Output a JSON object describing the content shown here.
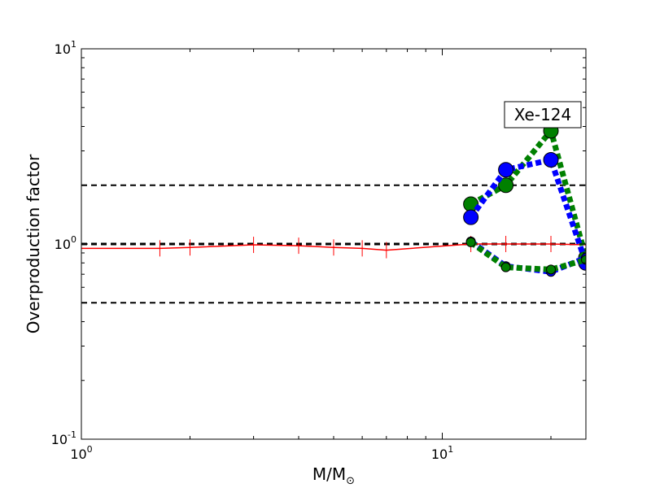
{
  "chart_data": {
    "type": "line",
    "title": "",
    "xlabel": "M/M",
    "xlabel_sub": "⊙",
    "ylabel": "Overproduction factor",
    "xscale": "log",
    "yscale": "log",
    "xlim": [
      1,
      25
    ],
    "ylim": [
      0.1,
      10
    ],
    "x_tick_labels": [
      {
        "value": 1,
        "base": "10",
        "exp": "0"
      },
      {
        "value": 10,
        "base": "10",
        "exp": "1"
      }
    ],
    "y_tick_labels": [
      {
        "value": 0.1,
        "base": "10",
        "exp": "-1"
      },
      {
        "value": 1,
        "base": "10",
        "exp": "0"
      },
      {
        "value": 10,
        "base": "10",
        "exp": "1"
      }
    ],
    "reference_lines": [
      {
        "y": 2.0,
        "style": "dashed",
        "color": "#000000"
      },
      {
        "y": 1.0,
        "style": "dashed",
        "color": "#000000"
      },
      {
        "y": 0.5,
        "style": "dashed",
        "color": "#000000"
      }
    ],
    "annotation": {
      "text": "Xe-124",
      "x": 20,
      "y": 4.5
    },
    "series": [
      {
        "style": "solid",
        "color": "#ff0000",
        "marker": "vline",
        "x": [
          1,
          1.65,
          2,
          3,
          4,
          5,
          6,
          7,
          12,
          15,
          20,
          25
        ],
        "y": [
          0.95,
          0.95,
          0.96,
          0.99,
          0.98,
          0.96,
          0.95,
          0.93,
          1.0,
          1.0,
          1.0,
          0.99
        ]
      },
      {
        "style": "dotted",
        "color": "#008000",
        "marker": "circle-large",
        "x": [
          12,
          15,
          20,
          25
        ],
        "y": [
          1.6,
          2.0,
          3.8,
          0.85
        ]
      },
      {
        "style": "dotted",
        "color": "#0000ff",
        "marker": "circle-large",
        "x": [
          12,
          15,
          20,
          25
        ],
        "y": [
          1.37,
          2.4,
          2.7,
          0.8
        ]
      },
      {
        "style": "dotted",
        "color": "#0000ff",
        "marker": "circle-small",
        "x": [
          12,
          15,
          20,
          25
        ],
        "y": [
          1.03,
          0.77,
          0.72,
          0.85
        ]
      },
      {
        "style": "dotted",
        "color": "#008000",
        "marker": "circle-small",
        "x": [
          12,
          15,
          20,
          25
        ],
        "y": [
          1.02,
          0.76,
          0.74,
          0.83
        ]
      }
    ]
  }
}
